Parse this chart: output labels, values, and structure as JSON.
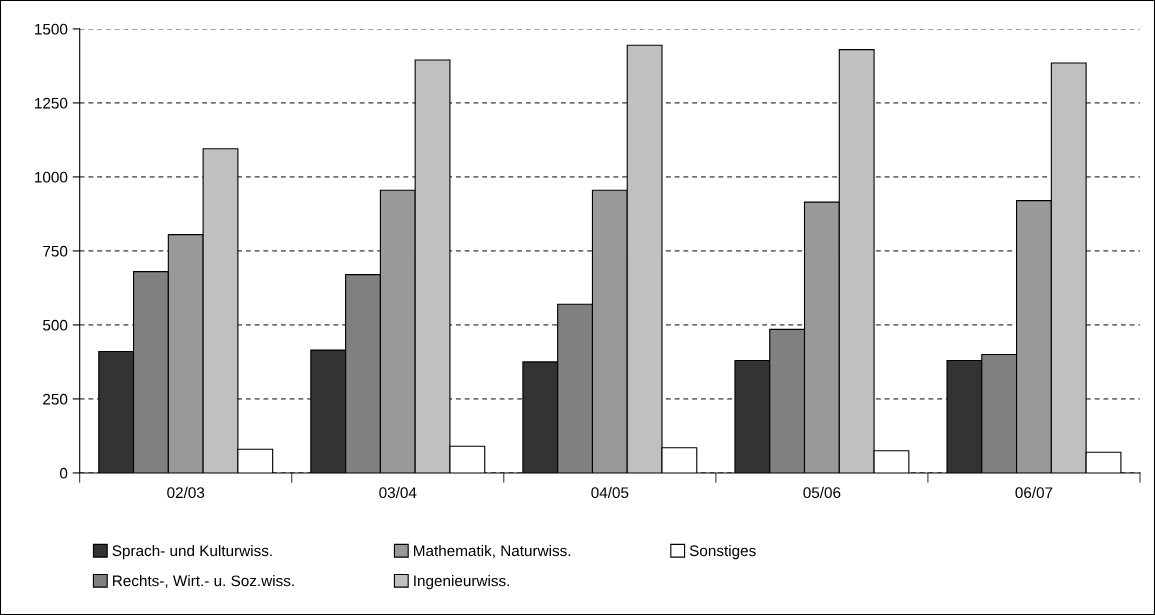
{
  "chart_data": {
    "type": "bar",
    "categories": [
      "02/03",
      "03/04",
      "04/05",
      "05/06",
      "06/07"
    ],
    "series": [
      {
        "name": "Sprach- und Kulturwiss.",
        "color": "#333333",
        "values": [
          410,
          415,
          375,
          380,
          380
        ]
      },
      {
        "name": "Rechts-, Wirt.- u. Soz.wiss.",
        "color": "#808080",
        "values": [
          680,
          670,
          570,
          485,
          400
        ]
      },
      {
        "name": "Mathematik, Naturwiss.",
        "color": "#999999",
        "values": [
          805,
          955,
          955,
          915,
          920
        ]
      },
      {
        "name": "Ingenieurwiss.",
        "color": "#c0c0c0",
        "values": [
          1095,
          1395,
          1445,
          1430,
          1385
        ]
      },
      {
        "name": "Sonstiges",
        "color": "#ffffff",
        "values": [
          80,
          90,
          85,
          75,
          70
        ]
      }
    ],
    "ylim": [
      0,
      1500
    ],
    "yticks": [
      0,
      250,
      500,
      750,
      1000,
      1250,
      1500
    ],
    "grid": "y",
    "legend": "bottom"
  }
}
